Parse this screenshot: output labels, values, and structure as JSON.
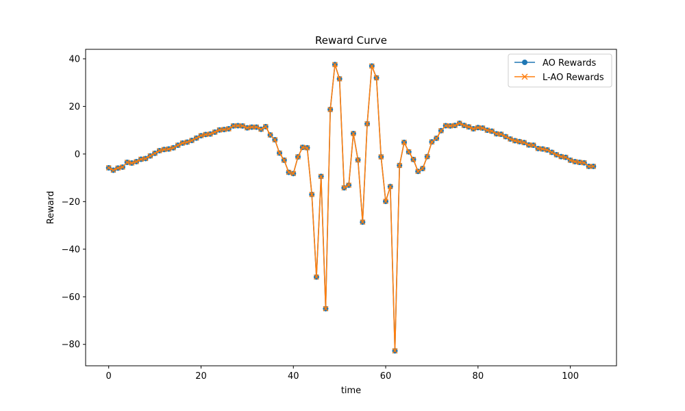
{
  "chart_data": {
    "type": "line",
    "title": "Reward Curve",
    "xlabel": "time",
    "ylabel": "Reward",
    "xlim": [
      -5,
      110
    ],
    "ylim": [
      -89,
      44
    ],
    "x_ticks": [
      0,
      20,
      40,
      60,
      80,
      100
    ],
    "y_ticks": [
      -80,
      -60,
      -40,
      -20,
      0,
      20,
      40
    ],
    "grid": false,
    "legend_position": "top-right",
    "x": [
      0,
      1,
      2,
      3,
      4,
      5,
      6,
      7,
      8,
      9,
      10,
      11,
      12,
      13,
      14,
      15,
      16,
      17,
      18,
      19,
      20,
      21,
      22,
      23,
      24,
      25,
      26,
      27,
      28,
      29,
      30,
      31,
      32,
      33,
      34,
      35,
      36,
      37,
      38,
      39,
      40,
      41,
      42,
      43,
      44,
      45,
      46,
      47,
      48,
      49,
      50,
      51,
      52,
      53,
      54,
      55,
      56,
      57,
      58,
      59,
      60,
      61,
      62,
      63,
      64,
      65,
      66,
      67,
      68,
      69,
      70,
      71,
      72,
      73,
      74,
      75,
      76,
      77,
      78,
      79,
      80,
      81,
      82,
      83,
      84,
      85,
      86,
      87,
      88,
      89,
      90,
      91,
      92,
      93,
      94,
      95,
      96,
      97,
      98,
      99,
      100,
      101,
      102,
      103,
      104,
      105
    ],
    "series": [
      {
        "name": "AO Rewards",
        "color": "#1f77b4",
        "marker": "circle",
        "values": [
          -5.8,
          -6.8,
          -5.9,
          -5.5,
          -3.5,
          -3.8,
          -3.2,
          -2.2,
          -1.9,
          -0.8,
          0.3,
          1.4,
          1.9,
          2.1,
          2.6,
          3.7,
          4.6,
          5.0,
          5.7,
          6.7,
          7.7,
          8.2,
          8.4,
          9.2,
          10.1,
          10.3,
          10.6,
          11.8,
          11.9,
          11.8,
          11.0,
          11.3,
          11.3,
          10.4,
          11.5,
          8.0,
          6.0,
          0.4,
          -2.6,
          -7.7,
          -8.2,
          -1.2,
          2.8,
          2.6,
          -17.0,
          -51.7,
          -9.4,
          -65.0,
          18.7,
          37.6,
          31.6,
          -14.2,
          -13.1,
          8.6,
          -2.5,
          -28.6,
          12.7,
          37.0,
          32.0,
          -1.2,
          -19.9,
          -13.7,
          -82.7,
          -4.8,
          4.9,
          0.9,
          -2.3,
          -7.3,
          -6.1,
          -1.1,
          5.1,
          6.6,
          9.8,
          11.9,
          11.8,
          12.0,
          12.9,
          12.0,
          11.4,
          10.6,
          11.1,
          10.9,
          10.0,
          9.6,
          8.5,
          8.3,
          7.3,
          6.3,
          5.6,
          5.2,
          4.8,
          3.8,
          3.7,
          2.3,
          2.1,
          1.7,
          0.7,
          -0.3,
          -1.1,
          -1.4,
          -2.6,
          -3.2,
          -3.5,
          -3.7,
          -5.2,
          -5.2
        ]
      },
      {
        "name": "L-AO Rewards",
        "color": "#ff7f0e",
        "marker": "x",
        "values": [
          -5.8,
          -6.8,
          -5.9,
          -5.5,
          -3.5,
          -3.8,
          -3.2,
          -2.2,
          -1.9,
          -0.8,
          0.3,
          1.4,
          1.9,
          2.1,
          2.6,
          3.7,
          4.6,
          5.0,
          5.7,
          6.7,
          7.7,
          8.2,
          8.4,
          9.2,
          10.1,
          10.3,
          10.6,
          11.8,
          11.9,
          11.8,
          11.0,
          11.3,
          11.3,
          10.4,
          11.5,
          8.0,
          6.0,
          0.4,
          -2.6,
          -7.7,
          -8.2,
          -1.2,
          2.8,
          2.6,
          -17.0,
          -51.7,
          -9.4,
          -65.0,
          18.7,
          37.6,
          31.6,
          -14.2,
          -13.1,
          8.6,
          -2.5,
          -28.6,
          12.7,
          37.0,
          32.0,
          -1.2,
          -19.9,
          -13.7,
          -82.7,
          -4.8,
          4.9,
          0.9,
          -2.3,
          -7.3,
          -6.1,
          -1.1,
          5.1,
          6.6,
          9.8,
          11.9,
          11.8,
          12.0,
          12.9,
          12.0,
          11.4,
          10.6,
          11.1,
          10.9,
          10.0,
          9.6,
          8.5,
          8.3,
          7.3,
          6.3,
          5.6,
          5.2,
          4.8,
          3.8,
          3.7,
          2.3,
          2.1,
          1.7,
          0.7,
          -0.3,
          -1.1,
          -1.4,
          -2.6,
          -3.2,
          -3.5,
          -3.7,
          -5.2,
          -5.2
        ]
      }
    ]
  }
}
